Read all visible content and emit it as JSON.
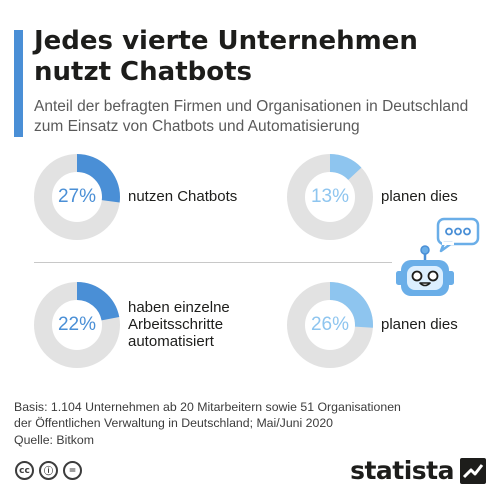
{
  "header": {
    "title": "Jedes vierte Unternehmen nutzt Chatbots",
    "subtitle": "Anteil der befragten Firmen und Organisationen in Deutschland zum Einsatz von Chatbots und Automatisierung",
    "accent_color": "#4a8fd6"
  },
  "chart_data": [
    {
      "type": "pie",
      "values": [
        27,
        73
      ],
      "value_label": "27%",
      "label": "nutzen Chatbots",
      "color": "#4a8fd6"
    },
    {
      "type": "pie",
      "values": [
        13,
        87
      ],
      "value_label": "13%",
      "label": "planen dies",
      "color": "#8ec5ef"
    },
    {
      "type": "pie",
      "values": [
        22,
        78
      ],
      "value_label": "22%",
      "label": [
        "haben einzelne",
        "Arbeitsschritte",
        "automatisiert"
      ],
      "color": "#4a8fd6"
    },
    {
      "type": "pie",
      "values": [
        26,
        74
      ],
      "value_label": "26%",
      "label": "planen dies",
      "color": "#8ec5ef"
    }
  ],
  "colors": {
    "track": "#e2e2e2",
    "robot_primary": "#6aaee8",
    "robot_dark": "#4a8fd6"
  },
  "icons": [
    "chatbot-robot-icon",
    "speech-bubble-icon",
    "cc-icon",
    "by-icon",
    "nd-icon",
    "statista-logo-icon"
  ],
  "footer": {
    "basis": [
      "Basis: 1.104 Unternehmen ab 20 Mitarbeitern sowie 51 Organisationen",
      "der Öffentlichen Verwaltung in Deutschland; Mai/Juni 2020"
    ],
    "source": "Quelle: Bitkom",
    "license_icons": [
      "cc",
      "ⓘ",
      "="
    ],
    "brand": "statista"
  }
}
